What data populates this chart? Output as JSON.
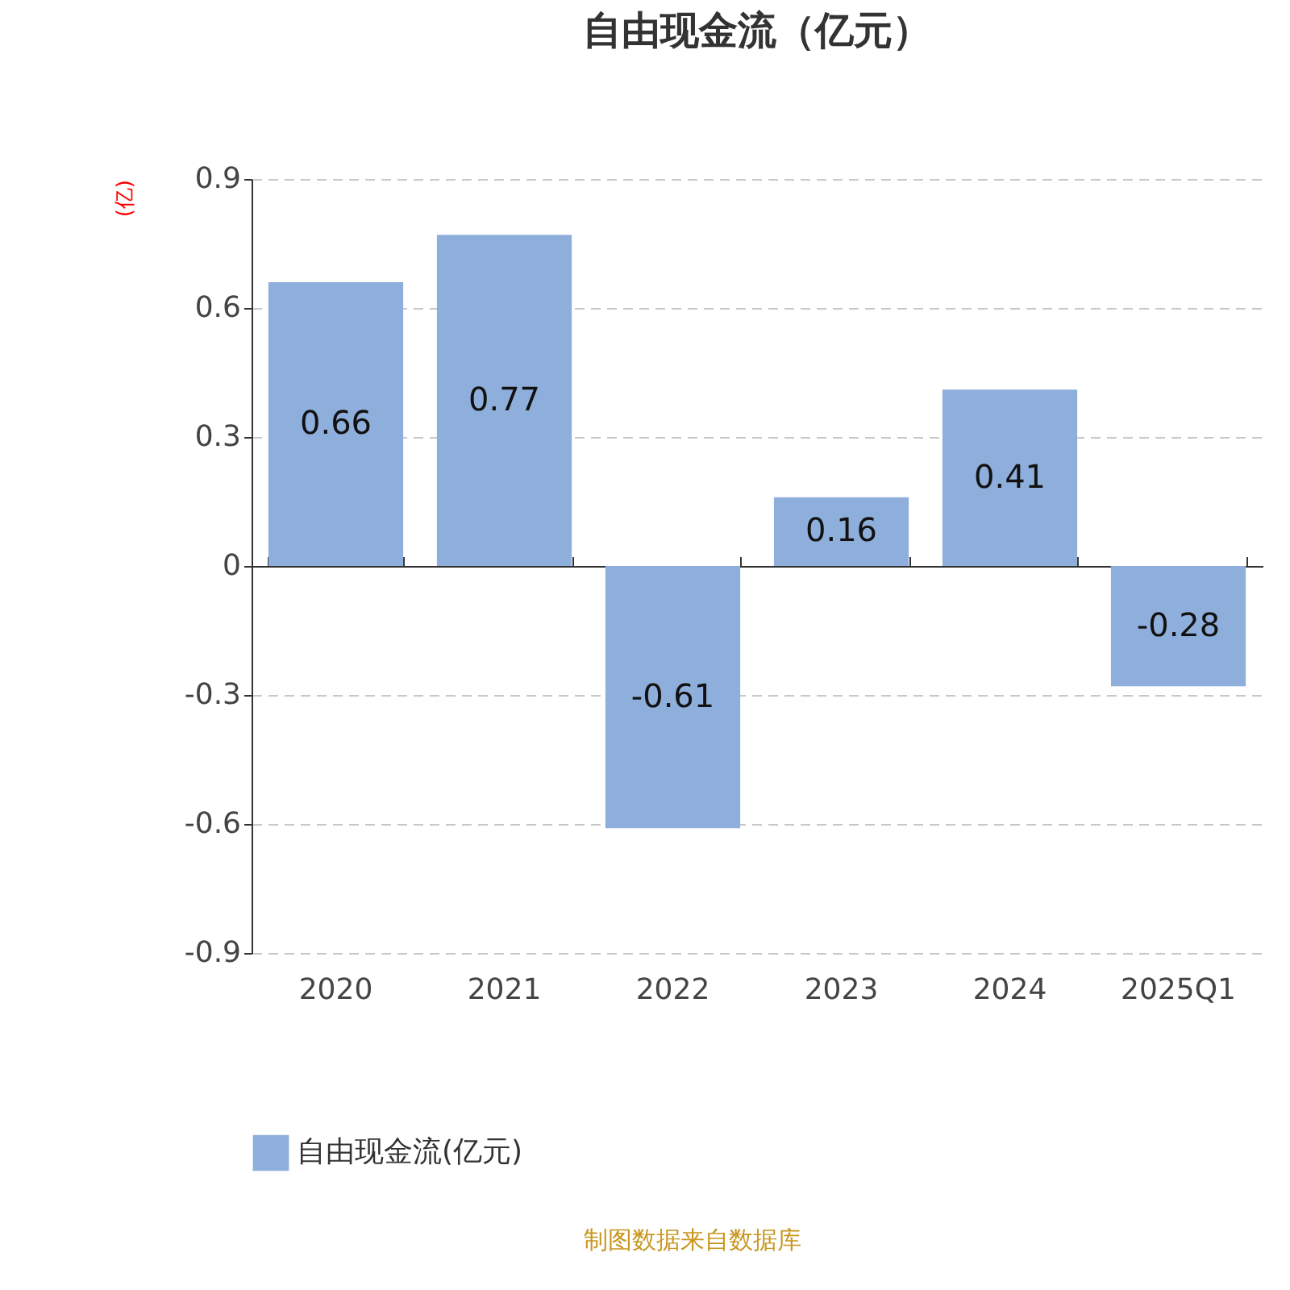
{
  "chart_data": {
    "type": "bar",
    "title": "自由现金流（亿元）",
    "ylabel": "(亿)",
    "categories": [
      "2020",
      "2021",
      "2022",
      "2023",
      "2024",
      "2025Q1"
    ],
    "series": [
      {
        "name": "自由现金流(亿元)",
        "color": "#8eaedb",
        "values": [
          0.66,
          0.77,
          -0.61,
          0.16,
          0.41,
          -0.28
        ]
      }
    ],
    "ylim": [
      -0.9,
      0.9
    ],
    "yticks": [
      -0.9,
      -0.6,
      -0.3,
      0,
      0.3,
      0.6,
      0.9
    ],
    "grid": "y",
    "legend": "bottom",
    "data_labels": true,
    "annotations": [
      "制图数据来自数据库"
    ]
  }
}
